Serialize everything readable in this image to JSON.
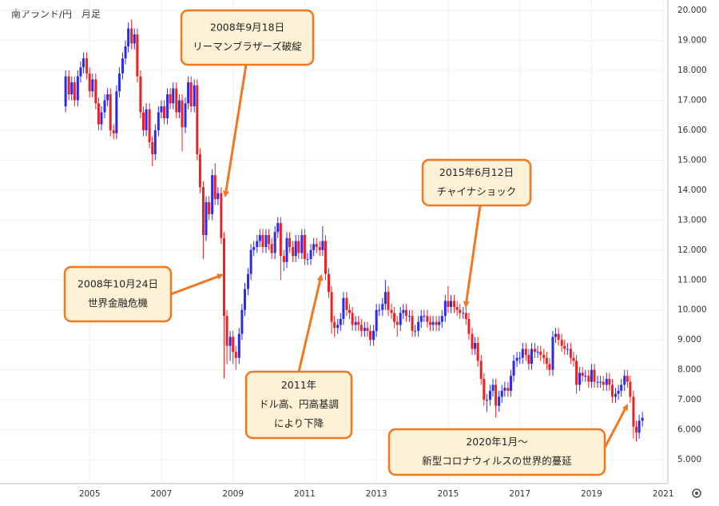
{
  "chart_data": {
    "type": "candlestick",
    "title": "南アランド/円　月足",
    "up_color": "#2b2bf0",
    "down_color": "#f02020",
    "grid": true,
    "xlim": [
      2002.5,
      2021.13
    ],
    "xticks": [
      2005,
      2007,
      2009,
      2011,
      2013,
      2015,
      2017,
      2019,
      2021
    ],
    "ylim": [
      4.2,
      20.35
    ],
    "yticks": [
      {
        "value": 5,
        "label": "5.000"
      },
      {
        "value": 6,
        "label": "6.000"
      },
      {
        "value": 7,
        "label": "7.000"
      },
      {
        "value": 8,
        "label": "8.000"
      },
      {
        "value": 9,
        "label": "9.000"
      },
      {
        "value": 10,
        "label": "10.000"
      },
      {
        "value": 11,
        "label": "11.000"
      },
      {
        "value": 12,
        "label": "12.000"
      },
      {
        "value": 13,
        "label": "13.000"
      },
      {
        "value": 14,
        "label": "14.000"
      },
      {
        "value": 15,
        "label": "15.000"
      },
      {
        "value": 16,
        "label": "16.000"
      },
      {
        "value": 17,
        "label": "17.000"
      },
      {
        "value": 18,
        "label": "18.000"
      },
      {
        "value": 19,
        "label": "19.000"
      },
      {
        "value": 20,
        "label": "20.000"
      }
    ],
    "x": [
      2004.33,
      2004.42,
      2004.5,
      2004.58,
      2004.67,
      2004.75,
      2004.83,
      2004.92,
      2005,
      2005.08,
      2005.17,
      2005.25,
      2005.33,
      2005.42,
      2005.5,
      2005.58,
      2005.67,
      2005.75,
      2005.83,
      2005.92,
      2006,
      2006.08,
      2006.17,
      2006.25,
      2006.33,
      2006.42,
      2006.5,
      2006.58,
      2006.67,
      2006.75,
      2006.83,
      2006.92,
      2007,
      2007.08,
      2007.17,
      2007.25,
      2007.33,
      2007.42,
      2007.5,
      2007.58,
      2007.67,
      2007.75,
      2007.83,
      2007.92,
      2008,
      2008.08,
      2008.17,
      2008.25,
      2008.33,
      2008.42,
      2008.5,
      2008.58,
      2008.67,
      2008.75,
      2008.83,
      2008.92,
      2009,
      2009.08,
      2009.17,
      2009.25,
      2009.33,
      2009.42,
      2009.5,
      2009.58,
      2009.67,
      2009.75,
      2009.83,
      2009.92,
      2010,
      2010.08,
      2010.17,
      2010.25,
      2010.33,
      2010.42,
      2010.5,
      2010.58,
      2010.67,
      2010.75,
      2010.83,
      2010.92,
      2011,
      2011.08,
      2011.17,
      2011.25,
      2011.33,
      2011.42,
      2011.5,
      2011.58,
      2011.67,
      2011.75,
      2011.83,
      2011.92,
      2012,
      2012.08,
      2012.17,
      2012.25,
      2012.33,
      2012.42,
      2012.5,
      2012.58,
      2012.67,
      2012.75,
      2012.83,
      2012.92,
      2013,
      2013.08,
      2013.17,
      2013.25,
      2013.33,
      2013.42,
      2013.5,
      2013.58,
      2013.67,
      2013.75,
      2013.83,
      2013.92,
      2014,
      2014.08,
      2014.17,
      2014.25,
      2014.33,
      2014.42,
      2014.5,
      2014.58,
      2014.67,
      2014.75,
      2014.83,
      2014.92,
      2015,
      2015.08,
      2015.17,
      2015.25,
      2015.33,
      2015.42,
      2015.5,
      2015.58,
      2015.67,
      2015.75,
      2015.83,
      2015.92,
      2016,
      2016.08,
      2016.17,
      2016.25,
      2016.33,
      2016.42,
      2016.5,
      2016.58,
      2016.67,
      2016.75,
      2016.83,
      2016.92,
      2017,
      2017.08,
      2017.17,
      2017.25,
      2017.33,
      2017.42,
      2017.5,
      2017.58,
      2017.67,
      2017.75,
      2017.83,
      2017.92,
      2018,
      2018.08,
      2018.17,
      2018.25,
      2018.33,
      2018.42,
      2018.5,
      2018.58,
      2018.67,
      2018.75,
      2018.83,
      2018.92,
      2019,
      2019.08,
      2019.17,
      2019.25,
      2019.33,
      2019.42,
      2019.5,
      2019.58,
      2019.67,
      2019.75,
      2019.83,
      2019.92,
      2020,
      2020.08,
      2020.17,
      2020.25,
      2020.33,
      2020.42
    ],
    "open": [
      16.8,
      17.8,
      17.2,
      17.6,
      17.0,
      17.8,
      18.1,
      18.4,
      17.9,
      17.3,
      17.7,
      16.9,
      16.2,
      16.6,
      17.0,
      17.2,
      16.0,
      15.9,
      17.3,
      17.9,
      18.4,
      18.8,
      19.4,
      18.9,
      19.2,
      17.8,
      16.6,
      16.0,
      16.7,
      15.6,
      15.2,
      16.0,
      16.6,
      16.8,
      16.4,
      17.2,
      16.9,
      17.4,
      16.6,
      17.0,
      16.1,
      16.9,
      17.6,
      16.8,
      17.5,
      15.2,
      14.1,
      12.5,
      13.6,
      13.2,
      14.5,
      13.7,
      13.9,
      12.4,
      9.8,
      8.8,
      9.1,
      8.6,
      8.4,
      9.2,
      10.0,
      10.7,
      11.2,
      12.0,
      12.1,
      12.3,
      12.5,
      12.1,
      12.5,
      12.2,
      11.9,
      12.6,
      12.9,
      11.8,
      11.6,
      12.4,
      12.1,
      11.8,
      12.3,
      11.9,
      12.5,
      11.7,
      11.7,
      12.0,
      12.2,
      12.1,
      12.0,
      12.3,
      11.2,
      10.6,
      9.6,
      9.4,
      9.5,
      9.7,
      10.4,
      10.0,
      9.9,
      9.5,
      9.6,
      9.5,
      9.3,
      9.4,
      9.3,
      9.0,
      9.3,
      10.0,
      10.0,
      10.2,
      10.6,
      10.0,
      9.9,
      9.6,
      9.5,
      9.9,
      10.0,
      9.8,
      9.8,
      9.3,
      9.3,
      9.6,
      9.8,
      9.8,
      9.6,
      9.5,
      9.6,
      9.5,
      9.6,
      9.8,
      10.3,
      10.1,
      10.3,
      10.1,
      10.0,
      9.9,
      9.9,
      9.7,
      9.2,
      8.7,
      8.9,
      8.3,
      7.7,
      7.0,
      7.0,
      7.3,
      7.5,
      6.8,
      7.1,
      7.3,
      7.4,
      7.3,
      7.8,
      8.3,
      8.4,
      8.4,
      8.7,
      8.5,
      8.2,
      8.7,
      8.6,
      8.6,
      8.5,
      8.4,
      8.2,
      8.0,
      9.1,
      9.2,
      9.0,
      8.8,
      8.7,
      8.7,
      8.4,
      8.3,
      7.5,
      7.9,
      7.8,
      7.8,
      7.6,
      8.0,
      7.6,
      7.6,
      7.6,
      7.5,
      7.7,
      7.5,
      7.1,
      7.2,
      7.3,
      7.5,
      7.8,
      7.6,
      7.1,
      6.1,
      5.9,
      6.3
    ],
    "high": [
      18.0,
      18.0,
      17.8,
      17.8,
      18.0,
      18.3,
      18.6,
      18.6,
      18.1,
      17.9,
      17.9,
      17.1,
      16.8,
      17.2,
      17.4,
      17.4,
      16.2,
      17.5,
      18.1,
      18.6,
      19.0,
      19.6,
      19.7,
      19.4,
      19.4,
      18.0,
      16.8,
      16.9,
      16.9,
      15.8,
      16.2,
      16.8,
      17.0,
      17.0,
      17.4,
      17.4,
      17.6,
      17.6,
      17.2,
      17.2,
      17.1,
      17.8,
      17.8,
      17.7,
      17.7,
      15.4,
      14.3,
      13.8,
      13.8,
      14.7,
      14.9,
      14.1,
      14.1,
      12.6,
      10.0,
      9.3,
      9.3,
      8.8,
      9.4,
      10.2,
      10.9,
      11.4,
      12.2,
      12.3,
      12.5,
      12.7,
      12.7,
      12.7,
      12.7,
      12.4,
      12.8,
      13.1,
      13.1,
      12.0,
      12.6,
      12.6,
      12.3,
      12.5,
      12.5,
      12.7,
      12.7,
      11.9,
      12.2,
      12.4,
      12.4,
      12.3,
      12.8,
      12.5,
      11.4,
      10.8,
      9.8,
      9.7,
      9.9,
      10.6,
      10.6,
      10.2,
      10.1,
      9.8,
      9.8,
      9.7,
      9.6,
      9.6,
      9.5,
      9.5,
      10.2,
      10.2,
      10.4,
      11.0,
      10.8,
      10.2,
      10.1,
      9.8,
      10.1,
      10.2,
      10.2,
      10.0,
      10.0,
      9.5,
      9.8,
      10.0,
      10.0,
      10.0,
      9.8,
      9.8,
      9.8,
      9.8,
      10.0,
      10.5,
      10.8,
      10.5,
      10.5,
      10.3,
      10.2,
      10.1,
      10.1,
      9.9,
      9.4,
      9.1,
      9.1,
      8.5,
      7.9,
      7.2,
      7.5,
      7.7,
      7.7,
      7.3,
      7.5,
      7.6,
      7.6,
      8.0,
      8.5,
      8.6,
      8.6,
      8.9,
      8.9,
      8.7,
      8.9,
      8.9,
      8.8,
      8.8,
      8.7,
      8.6,
      8.4,
      9.3,
      9.4,
      9.4,
      9.2,
      9.0,
      8.9,
      8.9,
      8.6,
      8.5,
      8.1,
      8.1,
      8.0,
      8.0,
      8.2,
      8.2,
      7.8,
      7.8,
      7.8,
      7.9,
      7.9,
      7.7,
      7.4,
      7.5,
      7.7,
      8.0,
      8.0,
      7.8,
      7.3,
      6.3,
      6.5,
      6.6
    ],
    "low": [
      16.6,
      17.0,
      17.0,
      16.8,
      16.8,
      17.6,
      17.9,
      17.7,
      17.1,
      17.1,
      16.7,
      16.0,
      16.0,
      16.4,
      16.8,
      15.8,
      15.7,
      15.7,
      17.1,
      17.7,
      18.2,
      18.6,
      18.7,
      18.7,
      17.6,
      16.4,
      15.8,
      15.8,
      15.4,
      14.8,
      15.0,
      15.8,
      16.4,
      16.2,
      16.2,
      16.7,
      16.7,
      16.4,
      16.4,
      15.3,
      15.9,
      16.7,
      16.6,
      16.6,
      15.0,
      13.9,
      11.7,
      12.3,
      13.0,
      13.0,
      13.5,
      13.5,
      12.2,
      7.7,
      8.2,
      8.3,
      8.2,
      8.0,
      8.2,
      9.0,
      9.8,
      10.5,
      11.0,
      11.8,
      11.9,
      12.1,
      11.9,
      11.9,
      12.0,
      11.7,
      11.7,
      12.4,
      11.0,
      11.3,
      11.4,
      11.9,
      11.6,
      11.6,
      11.7,
      11.7,
      11.5,
      11.5,
      11.5,
      11.8,
      11.9,
      11.8,
      11.8,
      11.0,
      10.4,
      9.2,
      9.1,
      9.2,
      9.3,
      9.5,
      9.8,
      9.7,
      9.3,
      9.3,
      9.3,
      9.1,
      9.1,
      9.1,
      8.8,
      8.8,
      9.1,
      9.8,
      9.8,
      10.0,
      9.8,
      9.7,
      9.4,
      9.1,
      9.3,
      9.7,
      9.6,
      9.6,
      9.1,
      9.1,
      9.1,
      9.4,
      9.6,
      9.4,
      9.3,
      9.3,
      9.3,
      9.3,
      9.4,
      9.6,
      9.9,
      9.9,
      9.9,
      9.8,
      9.7,
      9.7,
      9.5,
      9.0,
      8.5,
      8.5,
      8.1,
      7.5,
      6.8,
      6.6,
      6.8,
      7.1,
      6.4,
      6.6,
      6.9,
      7.1,
      7.1,
      7.1,
      7.6,
      8.1,
      8.2,
      8.2,
      8.3,
      8.0,
      8.0,
      8.4,
      8.4,
      8.3,
      8.2,
      8.0,
      7.8,
      7.8,
      8.9,
      8.8,
      8.6,
      8.5,
      8.5,
      8.2,
      8.1,
      7.2,
      7.3,
      7.6,
      7.6,
      7.4,
      7.4,
      7.4,
      7.4,
      7.4,
      7.3,
      7.3,
      7.3,
      6.9,
      6.9,
      7.0,
      7.1,
      7.3,
      7.4,
      6.9,
      5.7,
      5.6,
      5.7,
      6.1
    ],
    "close": [
      17.8,
      17.2,
      17.6,
      17.0,
      17.8,
      18.1,
      18.4,
      17.9,
      17.3,
      17.7,
      16.9,
      16.2,
      16.6,
      17.0,
      17.2,
      16.0,
      15.9,
      17.3,
      17.9,
      18.4,
      18.8,
      19.4,
      18.9,
      19.2,
      17.8,
      16.6,
      16.0,
      16.7,
      15.6,
      15.2,
      16.0,
      16.6,
      16.8,
      16.4,
      17.2,
      16.9,
      17.4,
      16.6,
      17.0,
      16.1,
      16.9,
      17.6,
      16.8,
      17.5,
      15.2,
      14.1,
      12.5,
      13.6,
      13.2,
      14.5,
      13.7,
      13.9,
      12.4,
      9.8,
      8.8,
      9.1,
      8.6,
      8.4,
      9.2,
      10.0,
      10.7,
      11.2,
      12.0,
      12.1,
      12.3,
      12.5,
      12.1,
      12.5,
      12.2,
      11.9,
      12.6,
      12.9,
      11.8,
      11.6,
      12.4,
      12.1,
      11.8,
      12.3,
      11.9,
      12.5,
      11.7,
      11.7,
      12.0,
      12.2,
      12.1,
      12.0,
      12.3,
      11.2,
      10.6,
      9.6,
      9.4,
      9.5,
      9.7,
      10.4,
      10.0,
      9.9,
      9.5,
      9.6,
      9.5,
      9.3,
      9.4,
      9.3,
      9.0,
      9.3,
      10.0,
      10.0,
      10.2,
      10.6,
      10.0,
      9.9,
      9.6,
      9.5,
      9.9,
      10.0,
      9.8,
      9.8,
      9.3,
      9.3,
      9.6,
      9.8,
      9.8,
      9.6,
      9.5,
      9.6,
      9.5,
      9.6,
      9.8,
      10.3,
      10.1,
      10.3,
      10.1,
      10.0,
      9.9,
      9.9,
      9.7,
      9.2,
      8.7,
      8.9,
      8.3,
      7.7,
      7.0,
      7.0,
      7.3,
      7.5,
      6.8,
      7.1,
      7.3,
      7.4,
      7.3,
      7.8,
      8.3,
      8.4,
      8.4,
      8.7,
      8.5,
      8.2,
      8.7,
      8.6,
      8.6,
      8.5,
      8.4,
      8.2,
      8.0,
      9.1,
      9.2,
      9.0,
      8.8,
      8.7,
      8.7,
      8.4,
      8.3,
      7.5,
      7.9,
      7.8,
      7.8,
      7.6,
      8.0,
      7.6,
      7.6,
      7.6,
      7.5,
      7.7,
      7.5,
      7.1,
      7.2,
      7.3,
      7.5,
      7.8,
      7.6,
      7.1,
      6.1,
      5.9,
      6.3,
      6.4
    ],
    "annotations": [
      {
        "lines": [
          "2008年9月18日",
          "リーマンブラザーズ破綻"
        ]
      },
      {
        "lines": [
          "2008年10月24日",
          "世界金融危機"
        ]
      },
      {
        "lines": [
          "2011年",
          "ドル高、円高基調",
          "により下降"
        ]
      },
      {
        "lines": [
          "2015年6月12日",
          "チャイナショック"
        ]
      },
      {
        "lines": [
          "2020年1月～",
          "新型コロナウィルスの世界的蔓延"
        ]
      }
    ]
  }
}
